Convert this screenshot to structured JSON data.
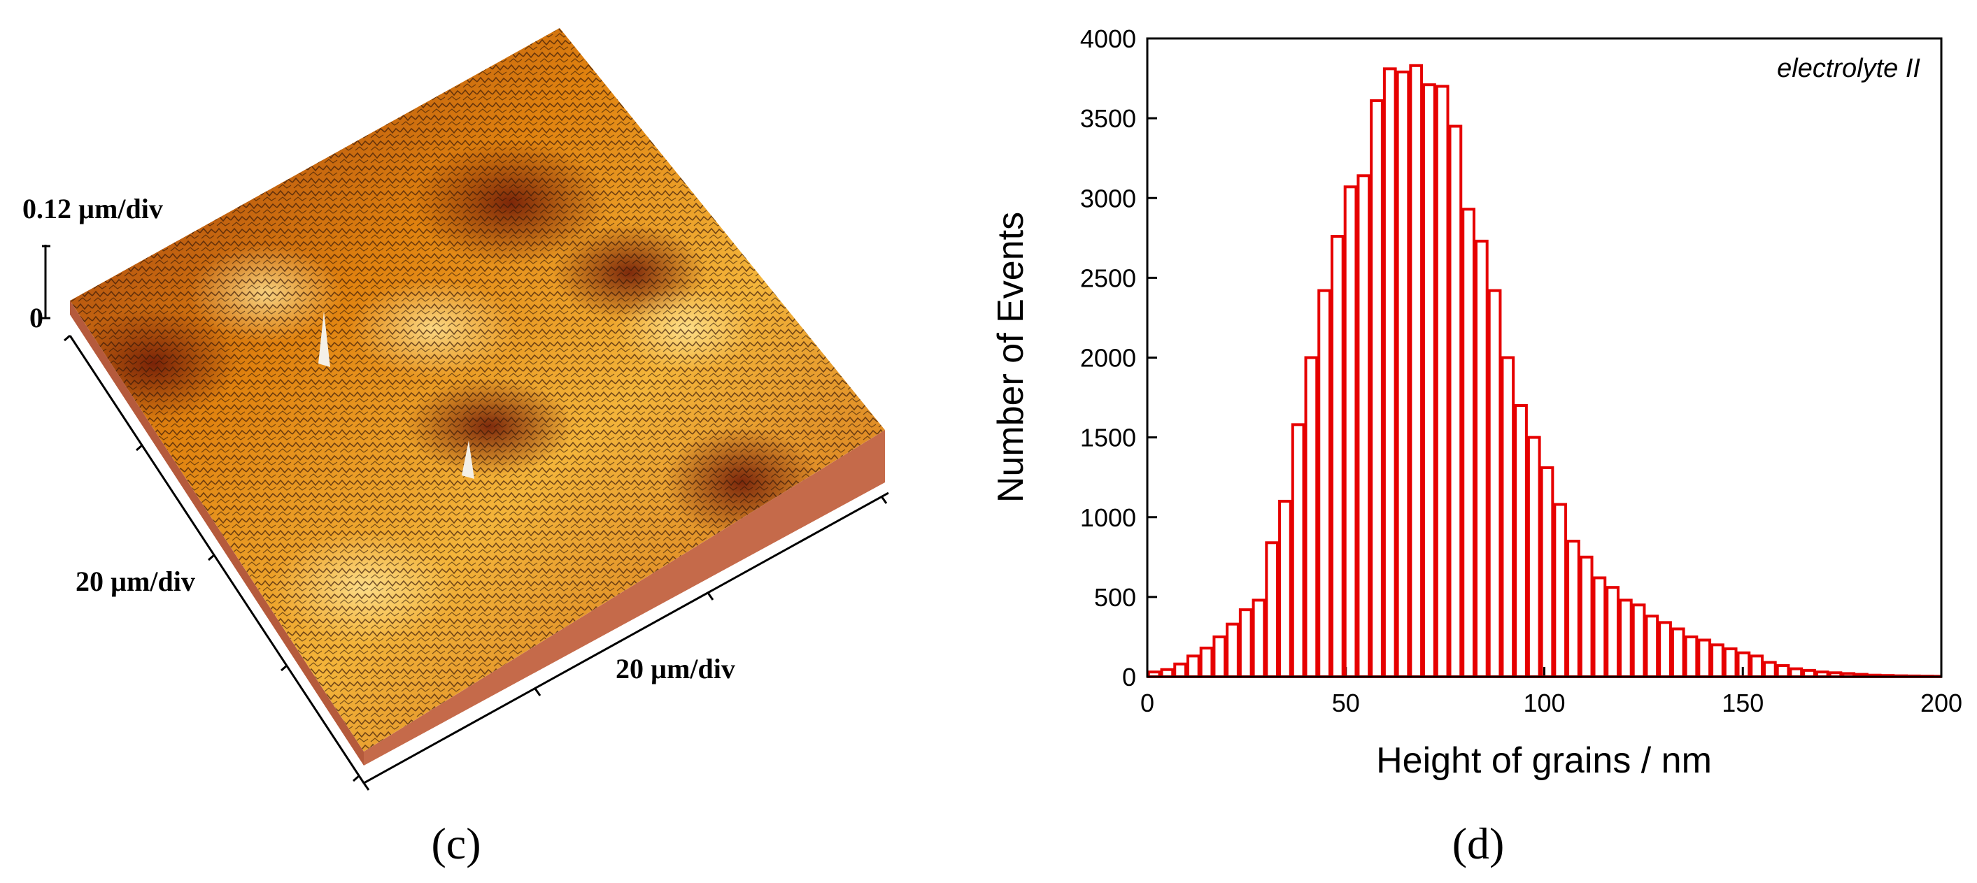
{
  "panel_c": {
    "label": "(c)",
    "z_scale": "0.12 µm/div",
    "z_zero": "0",
    "left_scale": "20 µm/div",
    "right_scale": "20 µm/div",
    "colors": {
      "dark": "#7a1e0c",
      "mid": "#d76a0a",
      "light": "#f6c04a",
      "side": "#c56a4a"
    }
  },
  "panel_d": {
    "label": "(d)"
  },
  "chart_data": {
    "type": "bar",
    "title": "",
    "annotation": "electrolyte II",
    "xlabel": "Height of grains / nm",
    "ylabel": "Number of Events",
    "xlim": [
      0,
      200
    ],
    "ylim": [
      0,
      4000
    ],
    "xticks": [
      0,
      50,
      100,
      150,
      200
    ],
    "yticks": [
      0,
      500,
      1000,
      1500,
      2000,
      2500,
      3000,
      3500,
      4000
    ],
    "bin_width": 3.3,
    "bar_color": "#e60000",
    "bin_centers": [
      1.7,
      5.0,
      8.3,
      11.6,
      14.9,
      18.2,
      21.5,
      24.8,
      28.1,
      31.4,
      34.7,
      38.0,
      41.3,
      44.6,
      47.9,
      51.2,
      54.5,
      57.8,
      61.1,
      64.4,
      67.7,
      71.0,
      74.3,
      77.6,
      80.9,
      84.2,
      87.5,
      90.8,
      94.1,
      97.4,
      100.7,
      104.0,
      107.3,
      110.6,
      113.9,
      117.2,
      120.5,
      123.8,
      127.1,
      130.4,
      133.7,
      137.0,
      140.3,
      143.6,
      146.9,
      150.2,
      153.5,
      156.8,
      160.1,
      163.4,
      166.7,
      170.0,
      173.3,
      176.6,
      179.9,
      183.2,
      186.5,
      189.8,
      193.1,
      196.4,
      199.7
    ],
    "values": [
      30,
      45,
      80,
      130,
      180,
      250,
      330,
      420,
      480,
      840,
      1100,
      1580,
      2000,
      2420,
      2760,
      3070,
      3140,
      3610,
      3810,
      3790,
      3830,
      3710,
      3700,
      3450,
      2930,
      2730,
      2420,
      2000,
      1700,
      1500,
      1310,
      1080,
      850,
      750,
      620,
      560,
      480,
      450,
      380,
      340,
      300,
      250,
      230,
      200,
      175,
      150,
      130,
      90,
      70,
      50,
      40,
      30,
      25,
      20,
      15,
      10,
      8,
      6,
      5,
      4,
      3
    ]
  }
}
